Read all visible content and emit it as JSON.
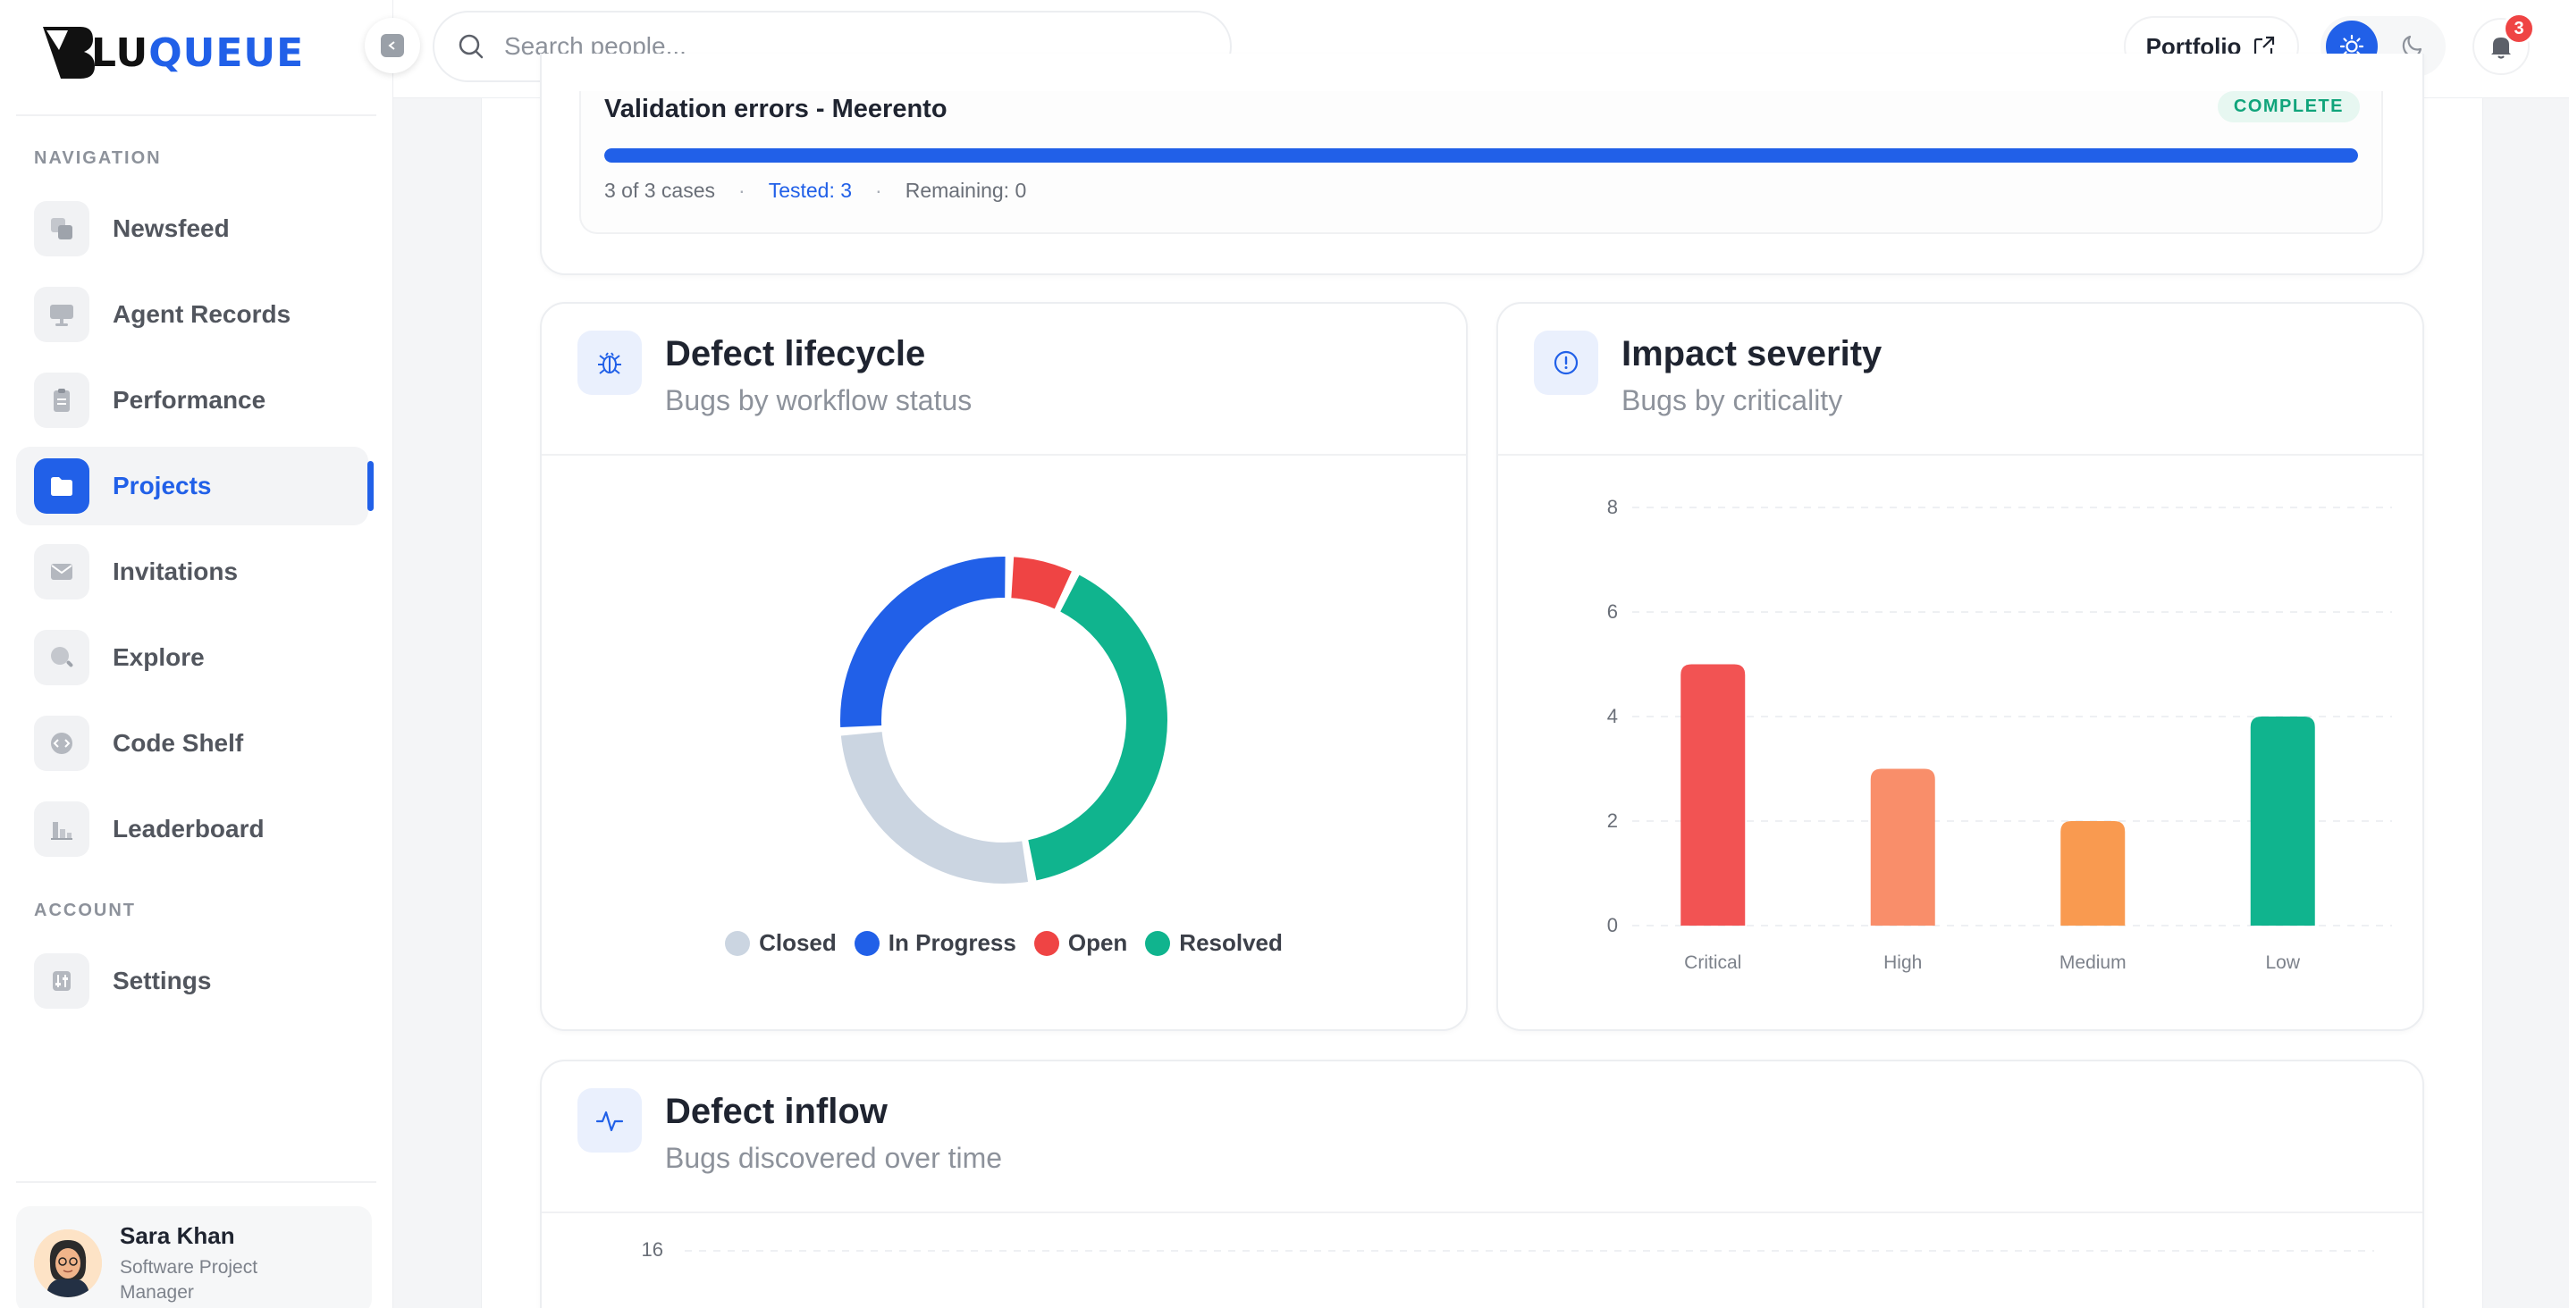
{
  "brand": {
    "logo_text_dark": "LU",
    "logo_text_blue": "QUEUE"
  },
  "sidebar": {
    "nav_section": "NAVIGATION",
    "account_section": "ACCOUNT",
    "items": [
      {
        "label": "Newsfeed",
        "icon": "newsfeed-icon"
      },
      {
        "label": "Agent Records",
        "icon": "monitor-icon"
      },
      {
        "label": "Performance",
        "icon": "clipboard-icon"
      },
      {
        "label": "Projects",
        "icon": "folder-icon",
        "active": true
      },
      {
        "label": "Invitations",
        "icon": "mail-icon"
      },
      {
        "label": "Explore",
        "icon": "search-icon"
      },
      {
        "label": "Code Shelf",
        "icon": "code-icon"
      },
      {
        "label": "Leaderboard",
        "icon": "bar-chart-icon"
      }
    ],
    "account_items": [
      {
        "label": "Settings",
        "icon": "sliders-icon"
      }
    ],
    "user": {
      "name": "Sara Khan",
      "role": "Software Project Manager"
    }
  },
  "topbar": {
    "search_placeholder": "Search people...",
    "portfolio_label": "Portfolio",
    "notification_count": "3"
  },
  "validation": {
    "title": "Validation errors - Meerento",
    "status": "COMPLETE",
    "progress": 1.0,
    "cases": "3 of 3 cases",
    "tested": "Tested: 3",
    "remaining": "Remaining: 0"
  },
  "lifecycle": {
    "title": "Defect lifecycle",
    "subtitle": "Bugs by workflow status"
  },
  "severity": {
    "title": "Impact severity",
    "subtitle": "Bugs by criticality"
  },
  "inflow": {
    "title": "Defect inflow",
    "subtitle": "Bugs discovered over time",
    "y_top_tick": "16"
  },
  "colors": {
    "accent": "#2160e8",
    "closed": "#cbd5e1",
    "in_progress": "#2160e8",
    "open": "#ef4444",
    "resolved": "#10b48e",
    "critical": "#f25353",
    "high": "#f98e6a",
    "medium": "#f99a50",
    "low": "#10b48e"
  },
  "chart_data": [
    {
      "type": "pie",
      "title": "Defect lifecycle",
      "categories": [
        "Closed",
        "In Progress",
        "Open",
        "Resolved"
      ],
      "values": [
        4,
        4,
        1,
        6
      ]
    },
    {
      "type": "bar",
      "title": "Impact severity",
      "categories": [
        "Critical",
        "High",
        "Medium",
        "Low"
      ],
      "values": [
        5,
        3,
        2,
        4
      ],
      "ylim": [
        0,
        8
      ],
      "yticks": [
        "0",
        "2",
        "4",
        "6",
        "8"
      ],
      "grid": true
    }
  ]
}
